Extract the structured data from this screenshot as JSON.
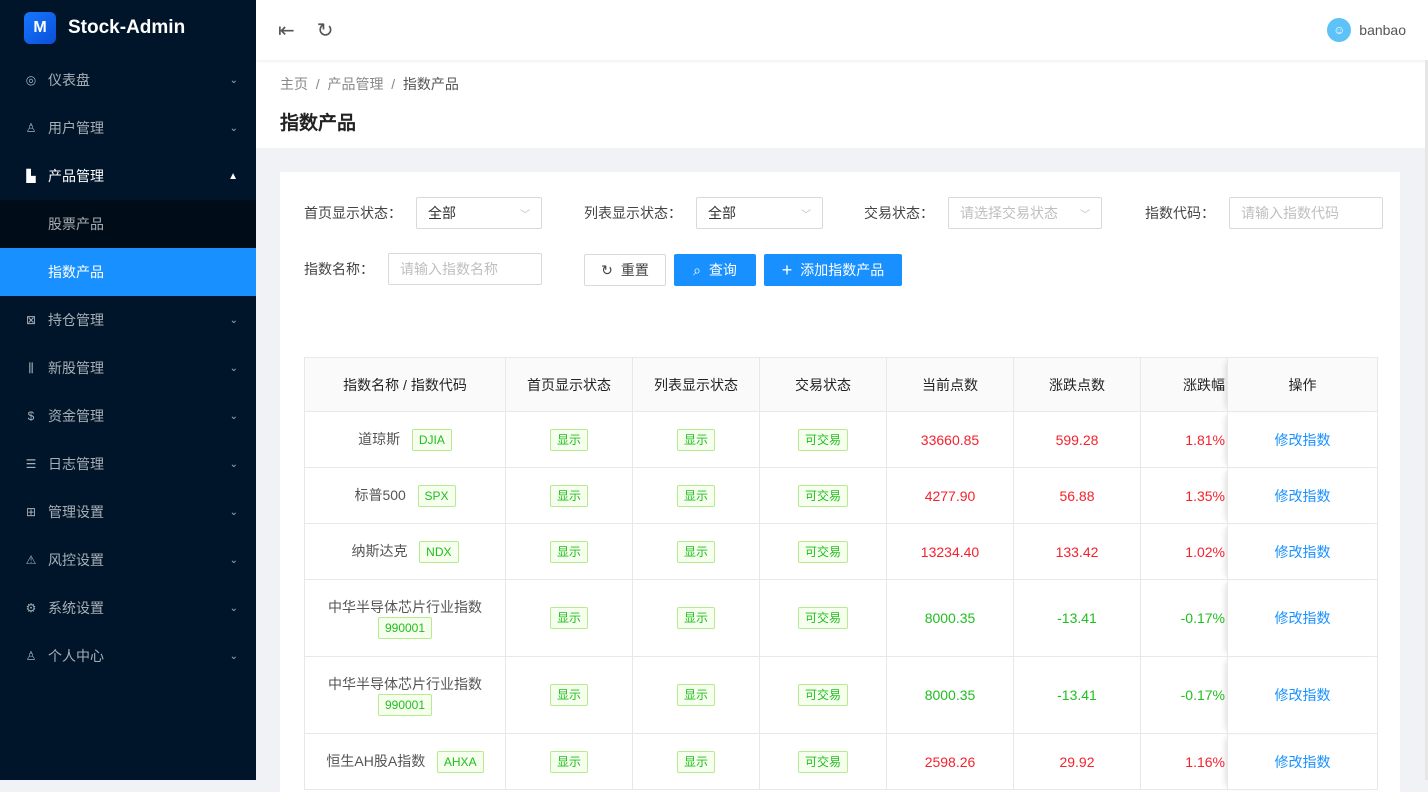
{
  "app": {
    "title": "Stock-Admin",
    "logo_glyph": "M"
  },
  "sidebar": {
    "items": [
      {
        "label": "仪表盘",
        "icon": "dashboard-icon",
        "glyph": "◎"
      },
      {
        "label": "用户管理",
        "icon": "user-icon",
        "glyph": "♙"
      },
      {
        "label": "产品管理",
        "icon": "area-chart-icon",
        "glyph": "▙",
        "open": true,
        "children": [
          {
            "label": "股票产品"
          },
          {
            "label": "指数产品",
            "active": true
          }
        ]
      },
      {
        "label": "持仓管理",
        "icon": "position-icon",
        "glyph": "⊠"
      },
      {
        "label": "新股管理",
        "icon": "sliders-icon",
        "glyph": "⫼"
      },
      {
        "label": "资金管理",
        "icon": "money-icon",
        "glyph": "$"
      },
      {
        "label": "日志管理",
        "icon": "log-icon",
        "glyph": "☰"
      },
      {
        "label": "管理设置",
        "icon": "control-icon",
        "glyph": "⊞"
      },
      {
        "label": "风控设置",
        "icon": "warning-icon",
        "glyph": "⚠"
      },
      {
        "label": "系统设置",
        "icon": "setting-icon",
        "glyph": "⚙"
      },
      {
        "label": "个人中心",
        "icon": "person-icon",
        "glyph": "♙"
      }
    ]
  },
  "header": {
    "username": "banbao"
  },
  "breadcrumb": [
    "主页",
    "产品管理",
    "指数产品"
  ],
  "page_title": "指数产品",
  "filters": {
    "home_status": {
      "label": "首页显示状态：",
      "value": "全部"
    },
    "list_status": {
      "label": "列表显示状态：",
      "value": "全部"
    },
    "trade_status": {
      "label": "交易状态：",
      "placeholder": "请选择交易状态"
    },
    "code": {
      "label": "指数代码：",
      "placeholder": "请输入指数代码"
    },
    "name": {
      "label": "指数名称：",
      "placeholder": "请输入指数名称"
    },
    "reset": "重置",
    "search": "查询",
    "add": "添加指数产品"
  },
  "table": {
    "columns": [
      "指数名称 / 指数代码",
      "首页显示状态",
      "列表显示状态",
      "交易状态",
      "当前点数",
      "涨跌点数",
      "涨跌幅",
      "操作"
    ],
    "rows": [
      {
        "name": "道琼斯",
        "code": "DJIA",
        "home": "显示",
        "list": "显示",
        "trade": "可交易",
        "price": "33660.85",
        "change": "599.28",
        "pct": "1.81%",
        "dir": "up",
        "action": "修改指数"
      },
      {
        "name": "标普500",
        "code": "SPX",
        "home": "显示",
        "list": "显示",
        "trade": "可交易",
        "price": "4277.90",
        "change": "56.88",
        "pct": "1.35%",
        "dir": "up",
        "action": "修改指数"
      },
      {
        "name": "纳斯达克",
        "code": "NDX",
        "home": "显示",
        "list": "显示",
        "trade": "可交易",
        "price": "13234.40",
        "change": "133.42",
        "pct": "1.02%",
        "dir": "up",
        "action": "修改指数"
      },
      {
        "name": "中华半导体芯片行业指数",
        "code": "990001",
        "home": "显示",
        "list": "显示",
        "trade": "可交易",
        "price": "8000.35",
        "change": "-13.41",
        "pct": "-0.17%",
        "dir": "down",
        "action": "修改指数",
        "wrap": true
      },
      {
        "name": "中华半导体芯片行业指数",
        "code": "990001",
        "home": "显示",
        "list": "显示",
        "trade": "可交易",
        "price": "8000.35",
        "change": "-13.41",
        "pct": "-0.17%",
        "dir": "down",
        "action": "修改指数",
        "wrap": true
      },
      {
        "name": "恒生AH股A指数",
        "code": "AHXA",
        "home": "显示",
        "list": "显示",
        "trade": "可交易",
        "price": "2598.26",
        "change": "29.92",
        "pct": "1.16%",
        "dir": "up",
        "action": "修改指数"
      }
    ]
  },
  "colors": {
    "accent": "#1890ff",
    "sidebar_bg": "#001529",
    "up": "#f5222d",
    "down": "#1fbf1f"
  }
}
